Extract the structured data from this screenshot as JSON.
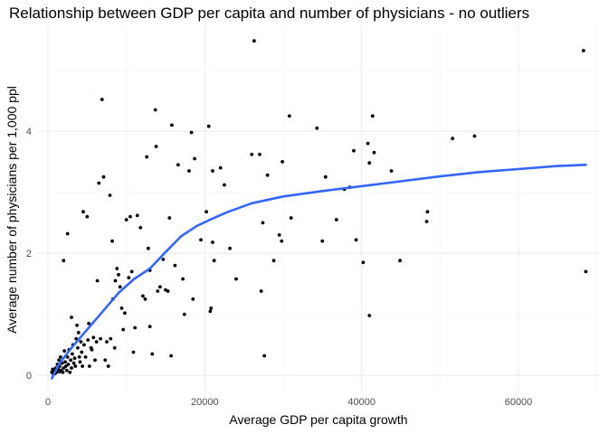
{
  "chart_data": {
    "type": "scatter",
    "title": "Relationship between GDP per capita and number of physicians - no outliers",
    "xlabel": "Average GDP per capita growth",
    "ylabel": "Average number of physicians per 1,000 ppl",
    "xlim": [
      -1500,
      70500
    ],
    "ylim": [
      -0.25,
      5.75
    ],
    "x_ticks": [
      0,
      20000,
      40000,
      60000
    ],
    "x_tick_labels": [
      "0",
      "20000",
      "40000",
      "60000"
    ],
    "y_ticks": [
      0,
      2,
      4
    ],
    "y_tick_labels": [
      "0",
      "2",
      "4"
    ],
    "grid": true,
    "legend": "none",
    "point_color": "#000000",
    "smooth_color": "#3366ff",
    "points": [
      [
        500,
        0.05
      ],
      [
        600,
        0.1
      ],
      [
        700,
        0.02
      ],
      [
        800,
        0.08
      ],
      [
        900,
        0.03
      ],
      [
        1000,
        0.12
      ],
      [
        1100,
        0.05
      ],
      [
        1200,
        0.18
      ],
      [
        1300,
        0.1
      ],
      [
        1400,
        0.25
      ],
      [
        1500,
        0.06
      ],
      [
        1500,
        0.15
      ],
      [
        1600,
        0.3
      ],
      [
        1700,
        0.08
      ],
      [
        1800,
        0.2
      ],
      [
        1900,
        0.05
      ],
      [
        2000,
        0.12
      ],
      [
        2000,
        1.88
      ],
      [
        2100,
        0.4
      ],
      [
        2200,
        0.22
      ],
      [
        2300,
        0.15
      ],
      [
        2400,
        0.08
      ],
      [
        2500,
        0.3
      ],
      [
        2500,
        2.32
      ],
      [
        2600,
        0.18
      ],
      [
        2700,
        0.42
      ],
      [
        2800,
        0.05
      ],
      [
        2900,
        0.25
      ],
      [
        3000,
        0.12
      ],
      [
        3000,
        0.95
      ],
      [
        3100,
        0.35
      ],
      [
        3200,
        0.5
      ],
      [
        3300,
        0.2
      ],
      [
        3400,
        0.28
      ],
      [
        3500,
        0.15
      ],
      [
        3600,
        0.6
      ],
      [
        3700,
        0.82
      ],
      [
        3800,
        0.45
      ],
      [
        3900,
        0.7
      ],
      [
        4000,
        0.3
      ],
      [
        4100,
        0.22
      ],
      [
        4200,
        0.55
      ],
      [
        4300,
        0.38
      ],
      [
        4400,
        0.15
      ],
      [
        4500,
        2.68
      ],
      [
        4600,
        0.5
      ],
      [
        4800,
        0.3
      ],
      [
        5000,
        2.6
      ],
      [
        5100,
        0.58
      ],
      [
        5200,
        0.85
      ],
      [
        5300,
        0.15
      ],
      [
        5500,
        0.45
      ],
      [
        5600,
        0.42
      ],
      [
        5800,
        0.62
      ],
      [
        6000,
        0.25
      ],
      [
        6200,
        0.55
      ],
      [
        6300,
        1.55
      ],
      [
        6500,
        3.15
      ],
      [
        6700,
        0.6
      ],
      [
        6900,
        4.52
      ],
      [
        7100,
        3.25
      ],
      [
        7300,
        0.25
      ],
      [
        7500,
        0.55
      ],
      [
        7700,
        0.15
      ],
      [
        7900,
        2.95
      ],
      [
        8000,
        0.6
      ],
      [
        8200,
        2.2
      ],
      [
        8300,
        1.25
      ],
      [
        8500,
        0.45
      ],
      [
        8600,
        1.55
      ],
      [
        8800,
        1.75
      ],
      [
        9000,
        1.65
      ],
      [
        9200,
        1.45
      ],
      [
        9400,
        1.1
      ],
      [
        9600,
        0.75
      ],
      [
        9800,
        1.02
      ],
      [
        10000,
        2.55
      ],
      [
        10300,
        1.6
      ],
      [
        10500,
        2.6
      ],
      [
        10700,
        1.7
      ],
      [
        10900,
        0.38
      ],
      [
        11100,
        0.78
      ],
      [
        11400,
        2.62
      ],
      [
        11800,
        2.42
      ],
      [
        12100,
        1.3
      ],
      [
        12400,
        1.25
      ],
      [
        12600,
        3.58
      ],
      [
        12800,
        2.08
      ],
      [
        13000,
        1.72
      ],
      [
        13000,
        0.8
      ],
      [
        13300,
        0.35
      ],
      [
        13700,
        4.35
      ],
      [
        13800,
        3.75
      ],
      [
        14000,
        1.38
      ],
      [
        14300,
        1.45
      ],
      [
        14700,
        1.9
      ],
      [
        15000,
        1.4
      ],
      [
        15300,
        1.38
      ],
      [
        15500,
        2.58
      ],
      [
        15700,
        0.32
      ],
      [
        15800,
        4.1
      ],
      [
        16200,
        1.8
      ],
      [
        16600,
        3.45
      ],
      [
        17200,
        1.58
      ],
      [
        17400,
        1.0
      ],
      [
        18000,
        3.35
      ],
      [
        18300,
        3.98
      ],
      [
        18500,
        1.25
      ],
      [
        18700,
        3.55
      ],
      [
        19500,
        2.22
      ],
      [
        20200,
        2.68
      ],
      [
        20500,
        4.08
      ],
      [
        20700,
        1.05
      ],
      [
        20800,
        1.1
      ],
      [
        21000,
        2.18
      ],
      [
        21000,
        3.35
      ],
      [
        21200,
        1.88
      ],
      [
        22000,
        3.4
      ],
      [
        22500,
        3.12
      ],
      [
        23200,
        2.08
      ],
      [
        24000,
        1.58
      ],
      [
        26000,
        3.62
      ],
      [
        26300,
        5.48
      ],
      [
        27000,
        3.62
      ],
      [
        27200,
        1.38
      ],
      [
        27400,
        2.5
      ],
      [
        27600,
        0.32
      ],
      [
        28000,
        3.28
      ],
      [
        28800,
        1.88
      ],
      [
        29500,
        2.3
      ],
      [
        29800,
        2.2
      ],
      [
        29900,
        3.5
      ],
      [
        30800,
        4.25
      ],
      [
        31000,
        2.58
      ],
      [
        34300,
        4.05
      ],
      [
        35000,
        2.2
      ],
      [
        35400,
        3.25
      ],
      [
        36800,
        2.55
      ],
      [
        37800,
        3.05
      ],
      [
        38500,
        3.08
      ],
      [
        39000,
        3.68
      ],
      [
        39300,
        2.22
      ],
      [
        40200,
        1.85
      ],
      [
        40800,
        3.8
      ],
      [
        41000,
        3.48
      ],
      [
        41000,
        0.98
      ],
      [
        41400,
        4.25
      ],
      [
        41600,
        3.65
      ],
      [
        43800,
        3.35
      ],
      [
        44900,
        1.88
      ],
      [
        48300,
        2.52
      ],
      [
        48400,
        2.68
      ],
      [
        51600,
        3.88
      ],
      [
        54400,
        3.92
      ],
      [
        68300,
        5.32
      ],
      [
        68600,
        1.7
      ]
    ],
    "smooth_line": [
      [
        500,
        -0.05
      ],
      [
        1500,
        0.2
      ],
      [
        3000,
        0.45
      ],
      [
        5000,
        0.75
      ],
      [
        7000,
        1.05
      ],
      [
        9000,
        1.35
      ],
      [
        11000,
        1.58
      ],
      [
        13000,
        1.75
      ],
      [
        15000,
        2.02
      ],
      [
        17000,
        2.28
      ],
      [
        19000,
        2.45
      ],
      [
        21000,
        2.57
      ],
      [
        23000,
        2.68
      ],
      [
        26000,
        2.82
      ],
      [
        30000,
        2.93
      ],
      [
        35000,
        3.02
      ],
      [
        40000,
        3.1
      ],
      [
        45000,
        3.18
      ],
      [
        50000,
        3.26
      ],
      [
        55000,
        3.33
      ],
      [
        60000,
        3.38
      ],
      [
        65000,
        3.43
      ],
      [
        68600,
        3.45
      ]
    ]
  }
}
